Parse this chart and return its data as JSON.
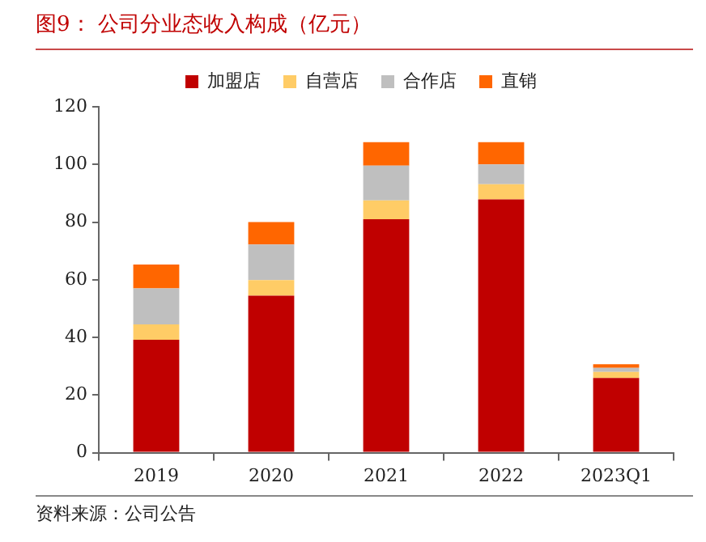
{
  "chart_data": {
    "type": "bar",
    "title": "图9：  公司分业态收入构成（亿元）",
    "categories": [
      "2019",
      "2020",
      "2021",
      "2022",
      "2023Q1"
    ],
    "series": [
      {
        "name": "加盟店",
        "color": "#c00000",
        "values": [
          39.2,
          54.5,
          81,
          87.9,
          25.9
        ]
      },
      {
        "name": "自营店",
        "color": "#ffcc66",
        "values": [
          5.3,
          5.4,
          6.5,
          5.2,
          2.1
        ]
      },
      {
        "name": "合作店",
        "color": "#bfbfbf",
        "values": [
          12.5,
          12.3,
          12.1,
          6.9,
          1.4
        ]
      },
      {
        "name": "直销",
        "color": "#ff6600",
        "values": [
          8.3,
          7.8,
          8.1,
          7.7,
          1.3
        ]
      }
    ],
    "stacked": true,
    "ylim": [
      0,
      120
    ],
    "yticks": [
      0,
      20,
      40,
      60,
      80,
      100,
      120
    ],
    "grid": false,
    "legend": "top",
    "annotations": [
      "资料来源：公司公告"
    ]
  }
}
